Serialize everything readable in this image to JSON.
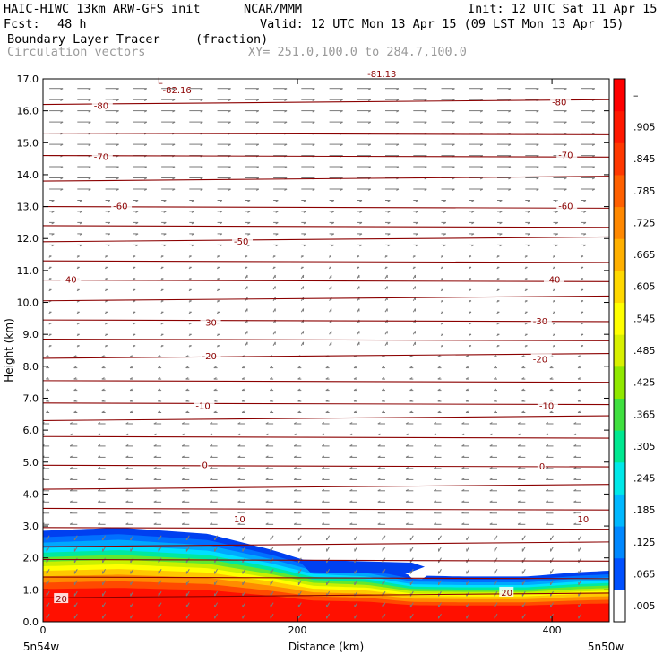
{
  "header": {
    "model": "HAIC-HIWC 13km ARW-GFS init",
    "org": "NCAR/MMM",
    "init": "Init: 12 UTC Sat 11 Apr 15",
    "fcst_label": "Fcst:",
    "fcst_value": "48 h",
    "valid": "Valid: 12 UTC Mon 13 Apr 15 (09 LST Mon 13 Apr 15)",
    "field": "Boundary Layer Tracer",
    "field_units": "(fraction)",
    "vectors": "Circulation vectors",
    "xy_range": "XY= 251.0,100.0 to 284.7,100.0"
  },
  "chart_data": {
    "type": "heatmap",
    "xlabel": "Distance (km)",
    "ylabel": "Height (km)",
    "xlim": [
      0,
      445
    ],
    "ylim": [
      0,
      17
    ],
    "x_ticks": [
      0,
      200,
      400
    ],
    "y_ticks": [
      "0.0",
      "1.0",
      "2.0",
      "3.0",
      "4.0",
      "5.0",
      "6.0",
      "7.0",
      "8.0",
      "9.0",
      "10.0",
      "11.0",
      "12.0",
      "13.0",
      "14.0",
      "15.0",
      "16.0",
      "17.0"
    ],
    "x_end_labels": {
      "left": "5n54w",
      "right": "5n50w"
    },
    "colorbar": {
      "labels": [
        ".005",
        ".065",
        ".125",
        ".185",
        ".245",
        ".305",
        ".365",
        ".425",
        ".485",
        ".545",
        ".605",
        ".665",
        ".725",
        ".785",
        ".845",
        ".905",
        "–"
      ],
      "colors": [
        "#ffffff",
        "#0050ff",
        "#0088ff",
        "#00b8ff",
        "#00e8e8",
        "#00e890",
        "#40e040",
        "#90e800",
        "#d8f000",
        "#ffff00",
        "#ffd800",
        "#ffb000",
        "#ff8800",
        "#ff6000",
        "#ff3800",
        "#ff1800",
        "#ff0000"
      ]
    },
    "tracer_profile": {
      "x": [
        0,
        60,
        130,
        180,
        212,
        255,
        290,
        330,
        380,
        420,
        445
      ],
      "top_height": [
        2.85,
        2.95,
        2.75,
        2.25,
        1.85,
        1.75,
        1.45,
        1.42,
        1.42,
        1.55,
        1.6
      ]
    },
    "temperature_contours": {
      "labels": [
        {
          "text": "-80",
          "x": 40,
          "y": 16.15
        },
        {
          "text": "-80",
          "x": 400,
          "y": 16.25
        },
        {
          "text": "-70",
          "x": 40,
          "y": 14.55
        },
        {
          "text": "-70",
          "x": 405,
          "y": 14.6
        },
        {
          "text": "-60",
          "x": 55,
          "y": 13.0
        },
        {
          "text": "-60",
          "x": 405,
          "y": 13.0
        },
        {
          "text": "-50",
          "x": 150,
          "y": 11.9
        },
        {
          "text": "-40",
          "x": 15,
          "y": 10.7
        },
        {
          "text": "-40",
          "x": 395,
          "y": 10.7
        },
        {
          "text": "-30",
          "x": 125,
          "y": 9.35
        },
        {
          "text": "-30",
          "x": 385,
          "y": 9.4
        },
        {
          "text": "-20",
          "x": 125,
          "y": 8.3
        },
        {
          "text": "-20",
          "x": 385,
          "y": 8.2
        },
        {
          "text": "-10",
          "x": 120,
          "y": 6.75
        },
        {
          "text": "-10",
          "x": 390,
          "y": 6.75
        },
        {
          "text": "0",
          "x": 125,
          "y": 4.9
        },
        {
          "text": "0",
          "x": 390,
          "y": 4.85
        },
        {
          "text": "10",
          "x": 150,
          "y": 3.2
        },
        {
          "text": "10",
          "x": 420,
          "y": 3.2
        },
        {
          "text": "20",
          "x": 10,
          "y": 0.7
        },
        {
          "text": "20",
          "x": 360,
          "y": 0.9
        }
      ],
      "levels_km": [
        16.2,
        15.3,
        14.6,
        13.8,
        13.0,
        12.4,
        11.9,
        11.3,
        10.7,
        10.05,
        9.45,
        8.85,
        8.25,
        7.55,
        6.85,
        6.3,
        5.8,
        4.9,
        4.15,
        3.55,
        2.95,
        2.35,
        1.95,
        1.4,
        0.75
      ],
      "minimum_label": "-82.16",
      "low_marker": "L",
      "top_partial_label": "-81.13"
    }
  }
}
